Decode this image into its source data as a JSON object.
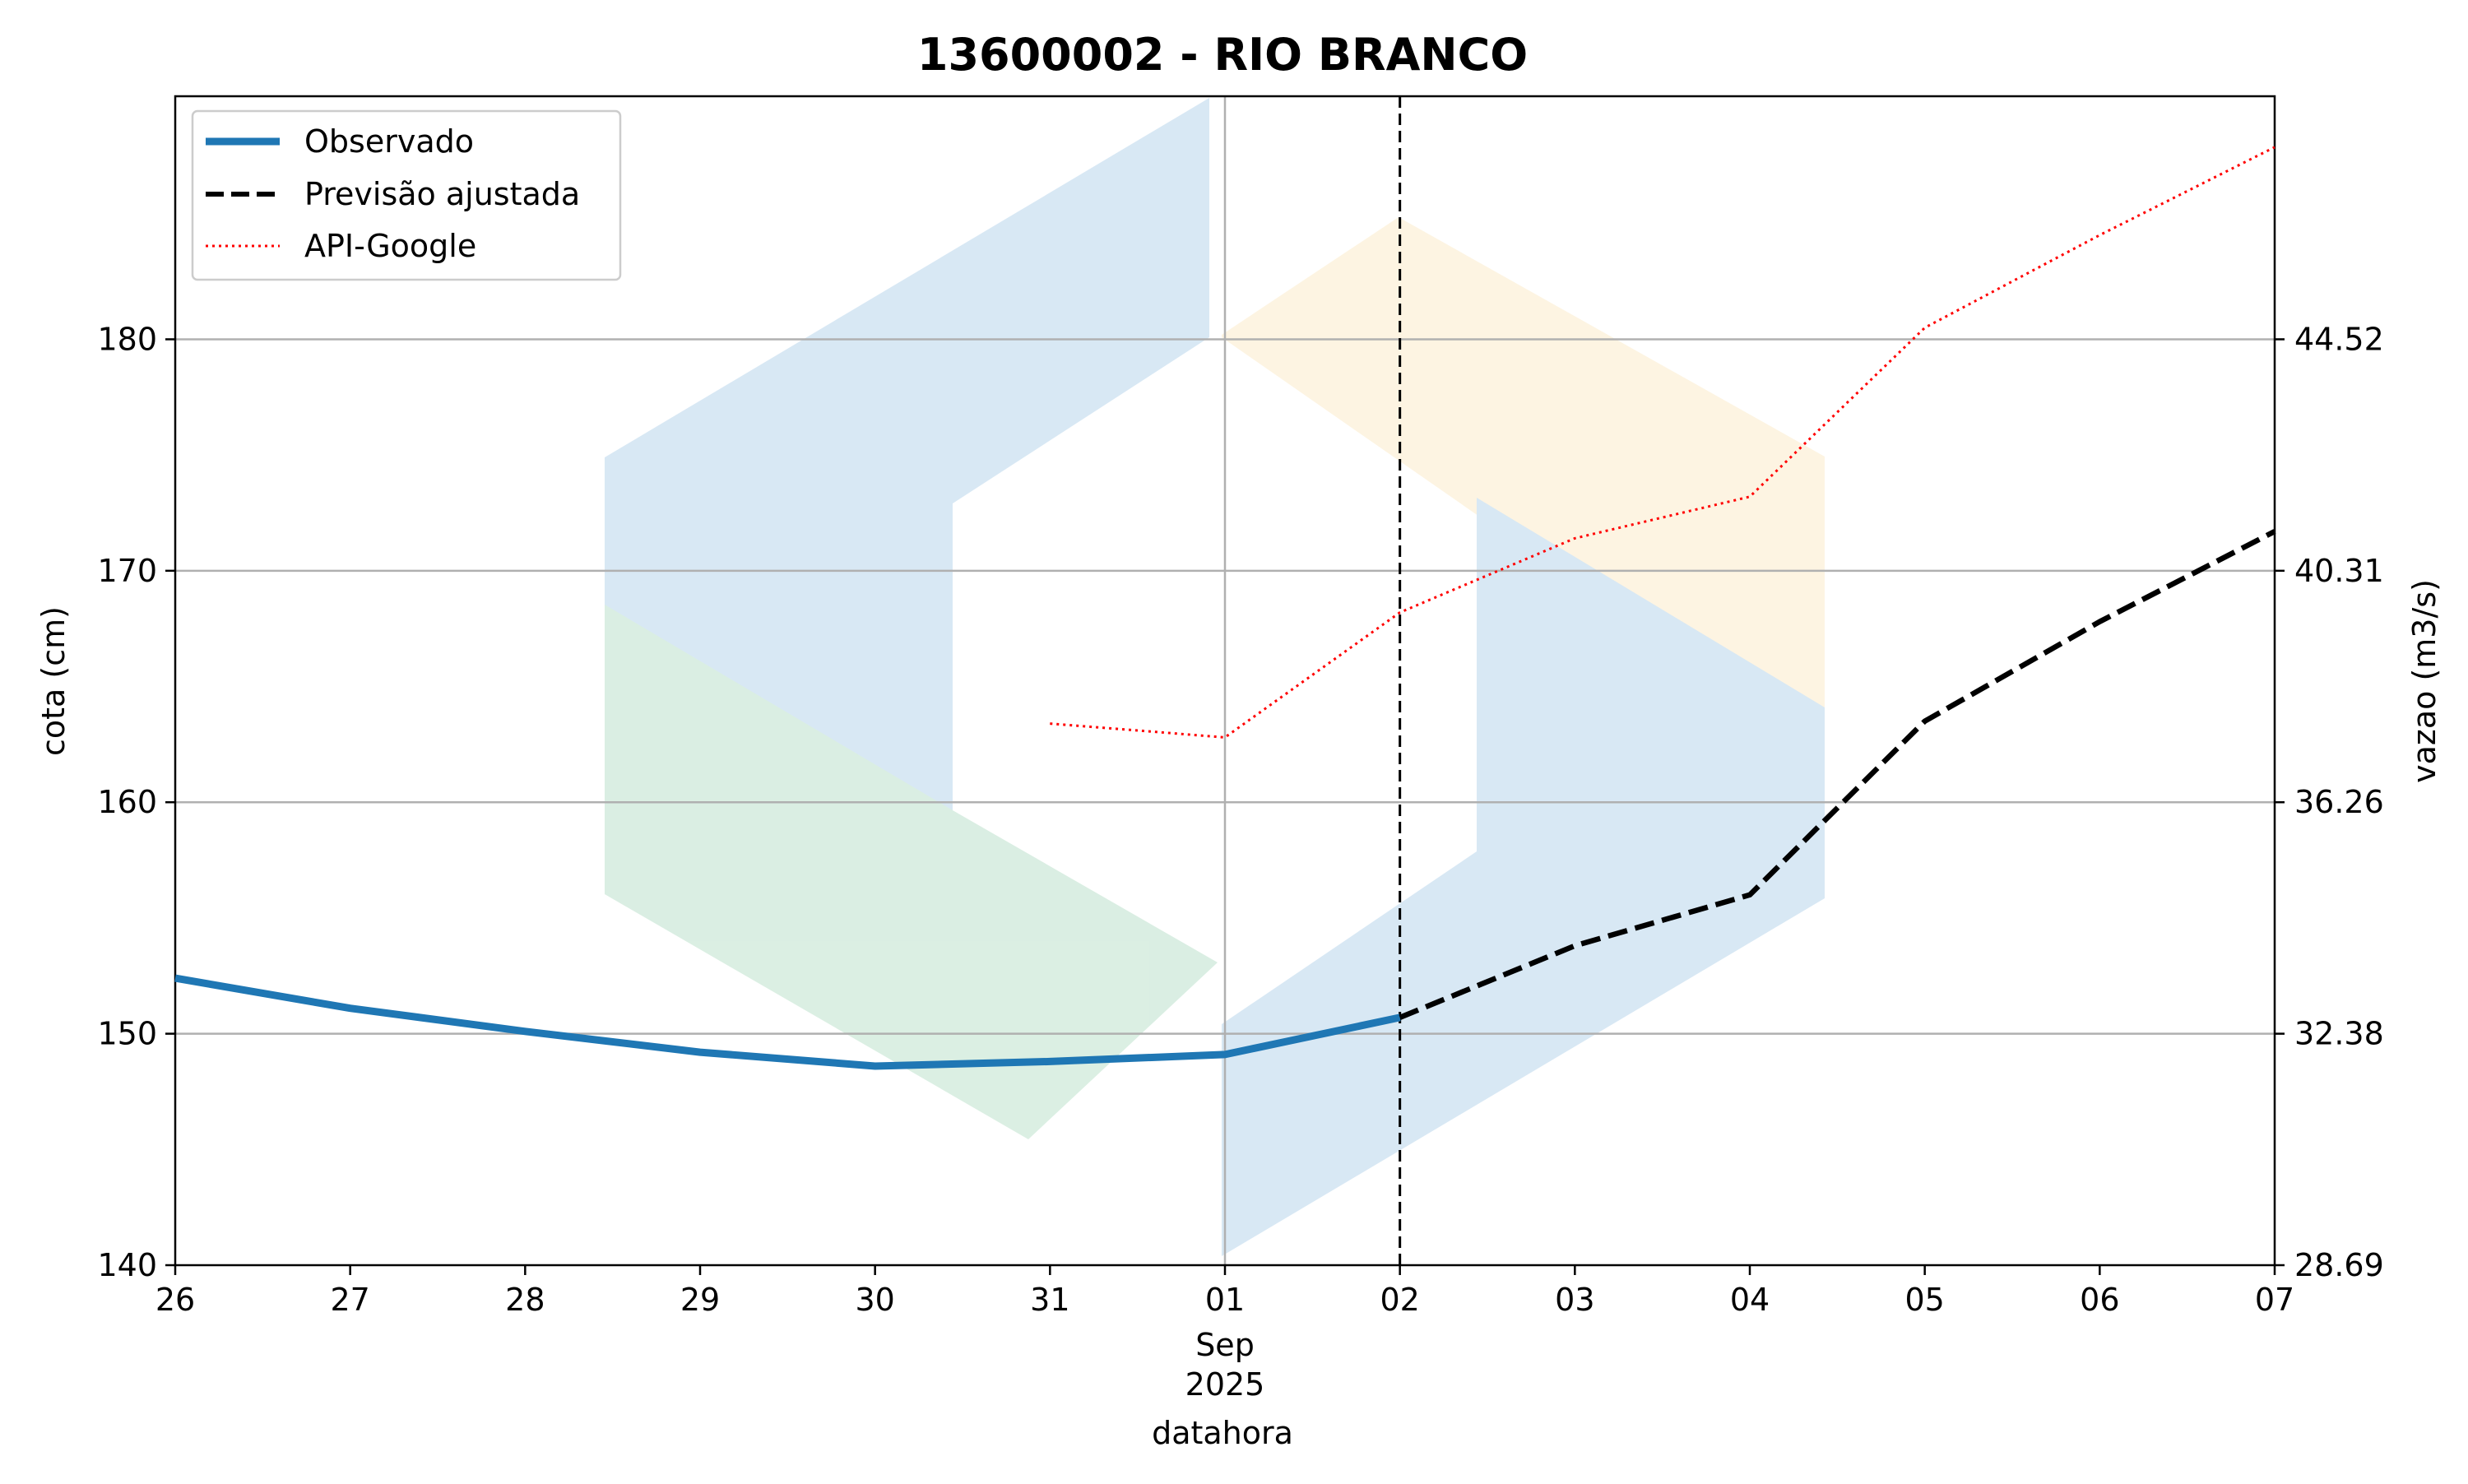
{
  "chart_data": {
    "type": "line",
    "title": "13600002 - RIO BRANCO",
    "xlabel": "datahora",
    "ylabel_left": "cota (cm)",
    "ylabel_right": "vazao (m3/s)",
    "x_ticks": [
      "26",
      "27",
      "28",
      "29",
      "30",
      "31",
      "01",
      "02",
      "03",
      "04",
      "05",
      "06",
      "07"
    ],
    "x_tick_sub": {
      "month": "Sep",
      "year": "2025"
    },
    "x_range": [
      "2025-08-26",
      "2025-09-07"
    ],
    "y_left_ticks": [
      "140",
      "150",
      "160",
      "170",
      "180"
    ],
    "y_left_range": [
      140,
      190.5
    ],
    "y_right_ticks": [
      "28.69",
      "32.38",
      "36.26",
      "40.31",
      "44.52"
    ],
    "grid": true,
    "legend_position": "upper left",
    "forecast_marker_date": "2025-09-02",
    "series": [
      {
        "name": "Observado",
        "style": "solid",
        "color": "#1f77b4",
        "x": [
          "2025-08-26",
          "2025-08-27",
          "2025-08-28",
          "2025-08-29",
          "2025-08-30",
          "2025-08-31",
          "2025-09-01",
          "2025-09-02"
        ],
        "y": [
          152.4,
          151.1,
          150.1,
          149.2,
          148.6,
          148.8,
          149.1,
          150.7
        ]
      },
      {
        "name": "Previsão ajustada",
        "style": "dashed",
        "color": "#000000",
        "x": [
          "2025-09-02",
          "2025-09-03",
          "2025-09-04",
          "2025-09-05",
          "2025-09-06",
          "2025-09-07"
        ],
        "y": [
          150.7,
          153.8,
          156.0,
          163.5,
          167.8,
          171.7
        ]
      },
      {
        "name": "API-Google",
        "style": "dotted",
        "color": "#ff0000",
        "x": [
          "2025-08-31",
          "2025-09-01",
          "2025-09-02",
          "2025-09-03",
          "2025-09-04",
          "2025-09-05",
          "2025-09-06",
          "2025-09-07"
        ],
        "y": [
          163.4,
          162.8,
          168.2,
          171.4,
          173.2,
          180.5,
          184.5,
          188.3
        ]
      }
    ]
  }
}
